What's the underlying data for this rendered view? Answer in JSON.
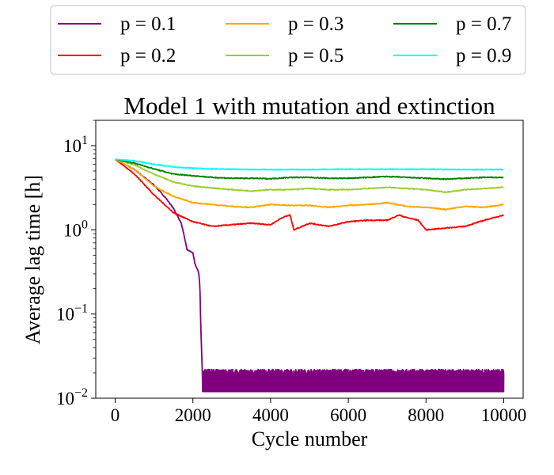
{
  "chart_data": {
    "type": "line",
    "title": "Model 1 with mutation and extinction",
    "xlabel": "Cycle number",
    "ylabel": "Average lag time [h]",
    "xlim": [
      -500,
      10500
    ],
    "ylim": [
      0.01,
      20
    ],
    "yscale": "log",
    "x_ticks": [
      0,
      2000,
      4000,
      6000,
      8000,
      10000
    ],
    "y_ticks": [
      {
        "value": 0.01,
        "base": "10",
        "exp": "−2"
      },
      {
        "value": 0.1,
        "base": "10",
        "exp": "−1"
      },
      {
        "value": 1,
        "base": "10",
        "exp": "0"
      },
      {
        "value": 10,
        "base": "10",
        "exp": "1"
      }
    ],
    "legend_position": "top, outside plot",
    "series": [
      {
        "name": "p = 0.1",
        "color": "#800080",
        "points": [
          [
            0,
            6.9
          ],
          [
            500,
            5.2
          ],
          [
            1000,
            3.4
          ],
          [
            1300,
            2.4
          ],
          [
            1500,
            1.8
          ],
          [
            1700,
            1.2
          ],
          [
            1800,
            0.75
          ],
          [
            1850,
            0.58
          ],
          [
            1950,
            0.55
          ],
          [
            2000,
            0.53
          ],
          [
            2050,
            0.4
          ],
          [
            2100,
            0.35
          ],
          [
            2150,
            0.31
          ],
          [
            2180,
            0.22
          ],
          [
            2200,
            0.08
          ],
          [
            2230,
            0.03
          ],
          [
            2250,
            0.016
          ]
        ],
        "band": {
          "start": 2250,
          "end": 10000,
          "low": 0.012,
          "high": 0.022
        }
      },
      {
        "name": "p = 0.2",
        "color": "#ff0000",
        "points": [
          [
            0,
            6.9
          ],
          [
            500,
            4.6
          ],
          [
            1000,
            2.6
          ],
          [
            1500,
            1.6
          ],
          [
            2000,
            1.25
          ],
          [
            2500,
            1.1
          ],
          [
            3000,
            1.15
          ],
          [
            3500,
            1.2
          ],
          [
            4000,
            1.15
          ],
          [
            4300,
            1.4
          ],
          [
            4500,
            1.5
          ],
          [
            4600,
            1.0
          ],
          [
            5000,
            1.2
          ],
          [
            5500,
            1.1
          ],
          [
            6000,
            1.25
          ],
          [
            6500,
            1.3
          ],
          [
            7000,
            1.3
          ],
          [
            7300,
            1.5
          ],
          [
            7500,
            1.4
          ],
          [
            7800,
            1.3
          ],
          [
            8000,
            1.0
          ],
          [
            8500,
            1.05
          ],
          [
            9000,
            1.1
          ],
          [
            9500,
            1.3
          ],
          [
            10000,
            1.5
          ]
        ]
      },
      {
        "name": "p = 0.3",
        "color": "#ffa500",
        "points": [
          [
            0,
            6.9
          ],
          [
            500,
            5.2
          ],
          [
            1000,
            3.3
          ],
          [
            1500,
            2.5
          ],
          [
            2000,
            2.1
          ],
          [
            2500,
            2.0
          ],
          [
            3000,
            1.9
          ],
          [
            3500,
            1.85
          ],
          [
            4000,
            2.0
          ],
          [
            4500,
            1.95
          ],
          [
            5000,
            1.95
          ],
          [
            5500,
            1.85
          ],
          [
            6000,
            1.95
          ],
          [
            6500,
            2.0
          ],
          [
            7000,
            2.1
          ],
          [
            7500,
            1.9
          ],
          [
            8000,
            1.85
          ],
          [
            8500,
            1.75
          ],
          [
            9000,
            1.9
          ],
          [
            9500,
            1.85
          ],
          [
            10000,
            2.0
          ]
        ]
      },
      {
        "name": "p = 0.5",
        "color": "#9acd32",
        "points": [
          [
            0,
            6.9
          ],
          [
            500,
            5.9
          ],
          [
            1000,
            4.6
          ],
          [
            1500,
            3.7
          ],
          [
            2000,
            3.3
          ],
          [
            2500,
            3.15
          ],
          [
            3000,
            3.0
          ],
          [
            3500,
            2.9
          ],
          [
            4000,
            3.0
          ],
          [
            4500,
            3.0
          ],
          [
            5000,
            3.1
          ],
          [
            5500,
            3.0
          ],
          [
            6000,
            3.0
          ],
          [
            6500,
            3.1
          ],
          [
            7000,
            3.2
          ],
          [
            7500,
            3.1
          ],
          [
            8000,
            3.0
          ],
          [
            8500,
            2.8
          ],
          [
            9000,
            3.0
          ],
          [
            9500,
            3.1
          ],
          [
            10000,
            3.2
          ]
        ]
      },
      {
        "name": "p = 0.7",
        "color": "#008000",
        "points": [
          [
            0,
            6.9
          ],
          [
            500,
            6.2
          ],
          [
            1000,
            5.3
          ],
          [
            1500,
            4.6
          ],
          [
            2000,
            4.4
          ],
          [
            2500,
            4.2
          ],
          [
            3000,
            4.1
          ],
          [
            3500,
            4.1
          ],
          [
            4000,
            4.05
          ],
          [
            4500,
            4.2
          ],
          [
            5000,
            4.2
          ],
          [
            5500,
            4.1
          ],
          [
            6000,
            4.1
          ],
          [
            6500,
            4.2
          ],
          [
            7000,
            4.3
          ],
          [
            7500,
            4.2
          ],
          [
            8000,
            4.1
          ],
          [
            8500,
            4.0
          ],
          [
            9000,
            4.1
          ],
          [
            9500,
            4.2
          ],
          [
            10000,
            4.2
          ]
        ]
      },
      {
        "name": "p = 0.9",
        "color": "#00ffff",
        "points": [
          [
            0,
            6.9
          ],
          [
            500,
            6.6
          ],
          [
            1000,
            6.0
          ],
          [
            1500,
            5.6
          ],
          [
            2000,
            5.4
          ],
          [
            2500,
            5.3
          ],
          [
            3000,
            5.25
          ],
          [
            3500,
            5.2
          ],
          [
            4000,
            5.2
          ],
          [
            5000,
            5.2
          ],
          [
            6000,
            5.25
          ],
          [
            7000,
            5.25
          ],
          [
            8000,
            5.25
          ],
          [
            9000,
            5.2
          ],
          [
            10000,
            5.2
          ]
        ]
      }
    ]
  }
}
